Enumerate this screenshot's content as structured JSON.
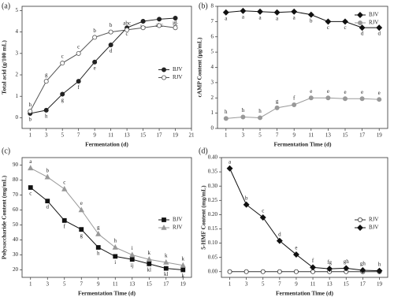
{
  "chart_data": [
    {
      "type": "line",
      "panel_label": "(a)",
      "x_label": "Fermentation (d)",
      "y_label": "Total acid (g/100 mL)",
      "x": [
        1,
        3,
        5,
        7,
        9,
        11,
        13,
        15,
        17,
        19
      ],
      "xlim": [
        0,
        21
      ],
      "xticks": [
        1,
        3,
        5,
        7,
        9,
        11,
        13,
        15,
        17,
        19,
        21
      ],
      "ylim": [
        -0.5,
        5.2
      ],
      "yticks": [
        0,
        1,
        2,
        3,
        4,
        5
      ],
      "legend": "center right",
      "series": [
        {
          "name": "BJV",
          "color": "#222",
          "marker": "circle",
          "filled": true,
          "label_pos": "below",
          "values": [
            0.2,
            0.35,
            1.1,
            1.7,
            2.6,
            3.4,
            4.2,
            4.5,
            4.6,
            4.65
          ],
          "labels": [
            "b",
            "h",
            "g",
            "f",
            "e",
            "d",
            "c",
            "bc",
            "abc",
            "bc"
          ]
        },
        {
          "name": "RJV",
          "color": "#555",
          "marker": "circle",
          "filled": false,
          "label_pos": "above",
          "values": [
            0.3,
            1.7,
            2.55,
            3.0,
            3.75,
            4.0,
            4.1,
            4.2,
            4.3,
            4.2
          ],
          "labels": [
            "h",
            "g",
            "c",
            "c",
            "b",
            "b",
            "abc",
            "ab",
            "a",
            "a"
          ]
        }
      ]
    },
    {
      "type": "line",
      "panel_label": "(b)",
      "x_label": "Fermentation Time (d)",
      "y_label": "cAMP Content (μg/mL)",
      "x": [
        1,
        3,
        5,
        7,
        9,
        11,
        13,
        15,
        17,
        19
      ],
      "xlim": [
        0,
        20
      ],
      "xticks": [
        1,
        3,
        5,
        7,
        9,
        11,
        13,
        15,
        17,
        19
      ],
      "ylim": [
        0,
        8
      ],
      "yticks": [
        0,
        1,
        2,
        3,
        4,
        5,
        6,
        7,
        8
      ],
      "legend": "top right",
      "series": [
        {
          "name": "BJV",
          "color": "#111",
          "marker": "diamond",
          "filled": true,
          "label_pos": "below",
          "values": [
            7.6,
            7.7,
            7.65,
            7.6,
            7.65,
            7.45,
            7.0,
            7.0,
            6.6,
            6.6
          ],
          "labels": [
            "a",
            "a",
            "a",
            "a",
            "a",
            "b",
            "c",
            "c",
            "d",
            "d"
          ]
        },
        {
          "name": "RJV",
          "color": "#999",
          "marker": "circle",
          "filled": true,
          "label_pos": "above",
          "values": [
            0.65,
            0.75,
            0.7,
            1.35,
            1.55,
            2.0,
            2.0,
            1.95,
            1.95,
            1.9
          ],
          "labels": [
            "h",
            "h",
            "h",
            "g",
            "f",
            "e",
            "e",
            "e",
            "e",
            "e"
          ]
        }
      ]
    },
    {
      "type": "line",
      "panel_label": "(c)",
      "x_label": "Fermentation Time (d)",
      "y_label": "Polysaccharide Content (mg/mL)",
      "x": [
        1,
        3,
        5,
        7,
        9,
        11,
        13,
        15,
        17,
        19
      ],
      "xlim": [
        0,
        20
      ],
      "xticks": [
        1,
        3,
        5,
        7,
        9,
        11,
        13,
        15,
        17,
        19
      ],
      "ylim": [
        15,
        95
      ],
      "yticks": [
        20,
        30,
        40,
        50,
        60,
        70,
        80,
        90
      ],
      "legend": "center right",
      "series": [
        {
          "name": "BJV",
          "color": "#111",
          "marker": "square",
          "filled": true,
          "label_pos": "below",
          "values": [
            75,
            66,
            53,
            47,
            35,
            29,
            27,
            24,
            21,
            20
          ],
          "labels": [
            "c",
            "d",
            "f",
            "g",
            "h",
            "i",
            "ij",
            "kl",
            "kl",
            "k"
          ]
        },
        {
          "name": "RJV",
          "color": "#999",
          "marker": "triangle",
          "filled": true,
          "label_pos": "above",
          "values": [
            88,
            82,
            74,
            60,
            44,
            35,
            30,
            27,
            25,
            23
          ],
          "labels": [
            "a",
            "b",
            "c",
            "e",
            "g",
            "h",
            "i",
            "k",
            "k",
            "k"
          ]
        }
      ]
    },
    {
      "type": "line",
      "panel_label": "(d)",
      "x_label": "Fermentation Time (d)",
      "y_label": "5-HMF Content (mg/mL)",
      "x": [
        1,
        3,
        5,
        7,
        9,
        11,
        13,
        15,
        17,
        19
      ],
      "xlim": [
        0,
        20
      ],
      "xticks": [
        1,
        3,
        5,
        7,
        9,
        11,
        13,
        15,
        17,
        19
      ],
      "ylim": [
        -0.02,
        0.4
      ],
      "yticks": [
        {
          "value": 0,
          "label": "0.00"
        },
        {
          "value": 0.05,
          "label": "0.05"
        },
        {
          "value": 0.1,
          "label": "0.10"
        },
        {
          "value": 0.15,
          "label": "0.15"
        },
        {
          "value": 0.2,
          "label": "0.20"
        },
        {
          "value": 0.25,
          "label": "0.25"
        },
        {
          "value": 0.3,
          "label": "0.30"
        },
        {
          "value": 0.35,
          "label": "0.35"
        },
        {
          "value": 0.4,
          "label": "0.40"
        }
      ],
      "legend": "center right",
      "series": [
        {
          "name": "RJV",
          "color": "#333",
          "marker": "circle",
          "filled": false,
          "label_pos": "above",
          "values": [
            0,
            0,
            0,
            0,
            0,
            0,
            0,
            0,
            0,
            0
          ]
        },
        {
          "name": "BJV",
          "color": "#111",
          "marker": "diamond",
          "filled": true,
          "label_pos": "above",
          "values": [
            0.362,
            0.235,
            0.19,
            0.108,
            0.06,
            0.015,
            0.01,
            0.012,
            0.005,
            0.003
          ],
          "labels": [
            "a",
            "b",
            "c",
            "d",
            "e",
            "f",
            "fg",
            "gh",
            "gh",
            "h"
          ]
        }
      ]
    }
  ]
}
